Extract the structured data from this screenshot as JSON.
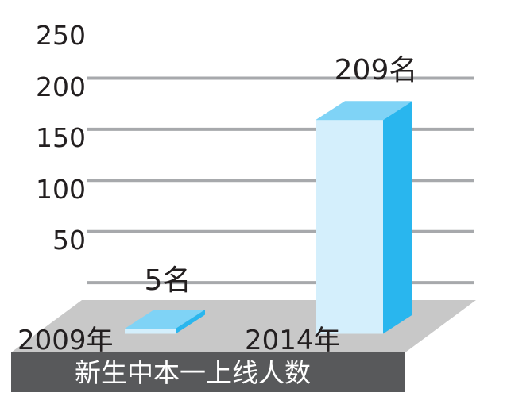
{
  "chart_data": {
    "type": "bar",
    "title": "新生中本一上线人数",
    "categories": [
      "2009年",
      "2014年"
    ],
    "values": [
      5,
      209
    ],
    "value_labels": [
      "5名",
      "209名"
    ],
    "y_ticks": [
      "50",
      "100",
      "150",
      "200",
      "250"
    ],
    "ylim": [
      0,
      250
    ],
    "grid": true,
    "colors": {
      "bar_front": "#d4effc",
      "bar_top": "#7fd3f6",
      "bar_side": "#29b6ee",
      "floor": "#c8c8c8",
      "band": "#58595b",
      "grid": "#a7a9ac"
    }
  }
}
